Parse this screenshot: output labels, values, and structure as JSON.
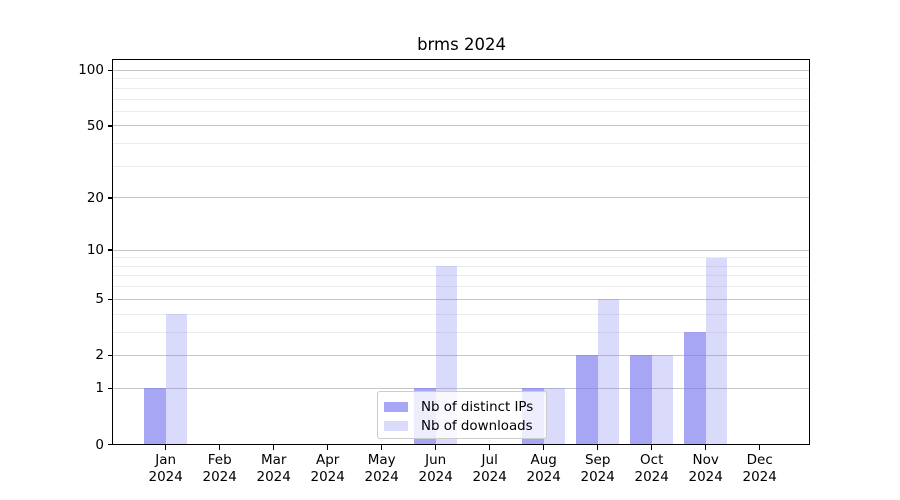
{
  "chart_data": {
    "type": "bar",
    "title": "brms 2024",
    "scale": "log1p",
    "months": [
      "Jan",
      "Feb",
      "Mar",
      "Apr",
      "May",
      "Jun",
      "Jul",
      "Aug",
      "Sep",
      "Oct",
      "Nov",
      "Dec"
    ],
    "year_label": "2024",
    "categories": [
      "Jan 2024",
      "Feb 2024",
      "Mar 2024",
      "Apr 2024",
      "May 2024",
      "Jun 2024",
      "Jul 2024",
      "Aug 2024",
      "Sep 2024",
      "Oct 2024",
      "Nov 2024",
      "Dec 2024"
    ],
    "series": [
      {
        "name": "Nb of distinct IPs",
        "color": "rgba(122,122,238,0.67)",
        "values": [
          1,
          0,
          0,
          0,
          0,
          1,
          0,
          1,
          2,
          2,
          3,
          0
        ]
      },
      {
        "name": "Nb of downloads",
        "color": "rgba(122,122,238,0.28)",
        "values": [
          4,
          0,
          0,
          0,
          0,
          8,
          0,
          1,
          5,
          2,
          9,
          0
        ]
      }
    ],
    "y_major_ticks": [
      0,
      1,
      2,
      5,
      10,
      20,
      50,
      100
    ],
    "y_tick_labels": [
      "0",
      "1",
      "2",
      "5",
      "10",
      "20",
      "50",
      "100"
    ],
    "y_minor_gridlines": [
      3,
      4,
      6,
      7,
      8,
      9,
      30,
      40,
      60,
      70,
      80,
      90
    ],
    "ylim": [
      0,
      114
    ],
    "xlabel": "",
    "ylabel": "",
    "grid": true,
    "legend_position": "lower center"
  },
  "colors": {
    "bar_base": "#7a7aee",
    "grid_major": "#c6c6c6",
    "grid_minor": "#ececec",
    "axis": "#000000",
    "legend_border": "#cccccc",
    "background": "#ffffff"
  }
}
